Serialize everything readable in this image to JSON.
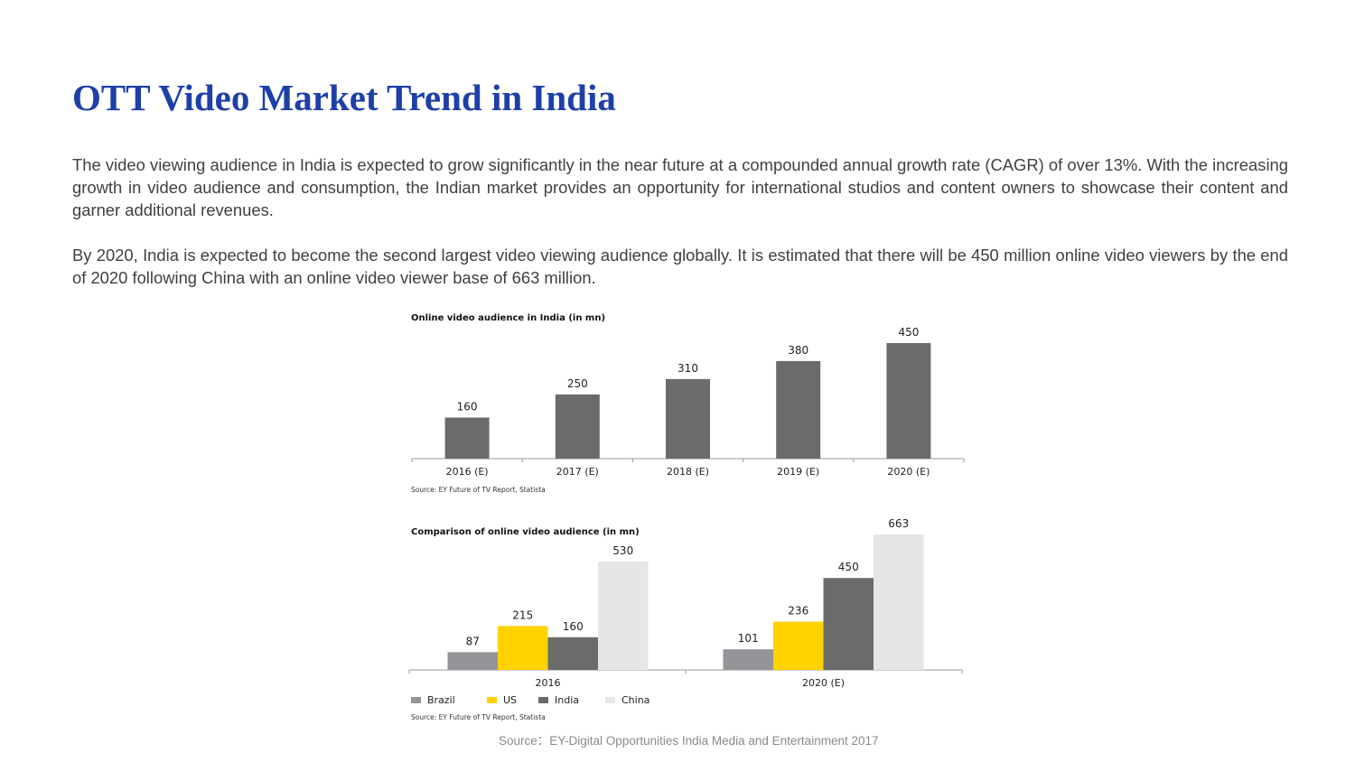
{
  "title": "OTT Video Market Trend in India",
  "paragraphs": [
    "The video viewing audience in India is expected to grow significantly in the near future at a compounded annual growth rate (CAGR) of over 13%. With the increasing growth in video audience and consumption, the Indian market provides an opportunity for international studios and content owners to showcase their content and garner additional revenues.",
    "By 2020, India is expected to become the second largest video viewing audience globally. It is estimated that there will be 450 million online video viewers by the end of 2020 following China with an online video viewer base of 663 million."
  ],
  "footer": "Source：EY-Digital Opportunities India Media and Entertainment 2017",
  "chart_data": [
    {
      "type": "bar",
      "title": "Online video audience in India (in mn)",
      "categories": [
        "2016 (E)",
        "2017 (E)",
        "2018 (E)",
        "2019 (E)",
        "2020 (E)"
      ],
      "values": [
        160,
        250,
        310,
        380,
        450
      ],
      "color": "#6b6b6b",
      "source": "Source: EY Future of TV Report, Statista"
    },
    {
      "type": "bar",
      "title": "Comparison of online video audience (in mn)",
      "categories": [
        "2016",
        "2020 (E)"
      ],
      "series": [
        {
          "name": "Brazil",
          "values": [
            87,
            101
          ],
          "color": "#939598"
        },
        {
          "name": "US",
          "values": [
            215,
            236
          ],
          "color": "#ffd200"
        },
        {
          "name": "India",
          "values": [
            160,
            450
          ],
          "color": "#6b6b6b"
        },
        {
          "name": "China",
          "values": [
            530,
            663
          ],
          "color": "#e6e6e6"
        }
      ],
      "legend_position": "bottom-left",
      "source": "Source: EY Future of TV Report, Statista"
    }
  ]
}
